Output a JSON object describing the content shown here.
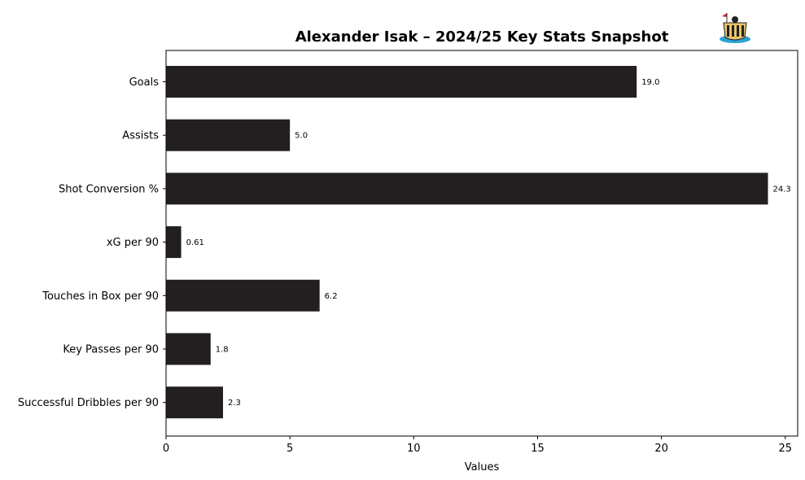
{
  "chart_data": {
    "type": "bar",
    "orientation": "horizontal",
    "title": "Alexander Isak – 2024/25 Key Stats Snapshot",
    "xlabel": "Values",
    "ylabel": "",
    "xlim": [
      0,
      25.5
    ],
    "xticks": [
      0,
      5,
      10,
      15,
      20,
      25
    ],
    "categories": [
      "Goals",
      "Assists",
      "Shot Conversion %",
      "xG per 90",
      "Touches in Box per 90",
      "Key Passes per 90",
      "Successful Dribbles per 90"
    ],
    "values": [
      19.0,
      5.0,
      24.3,
      0.61,
      6.2,
      1.8,
      2.3
    ],
    "data_labels": [
      "19.0",
      "5.0",
      "24.3",
      "0.61",
      "6.2",
      "1.8",
      "2.3"
    ],
    "bar_color": "#231f20",
    "grid": false,
    "legend": "none",
    "logo": "newcastle-united-crest-icon"
  }
}
